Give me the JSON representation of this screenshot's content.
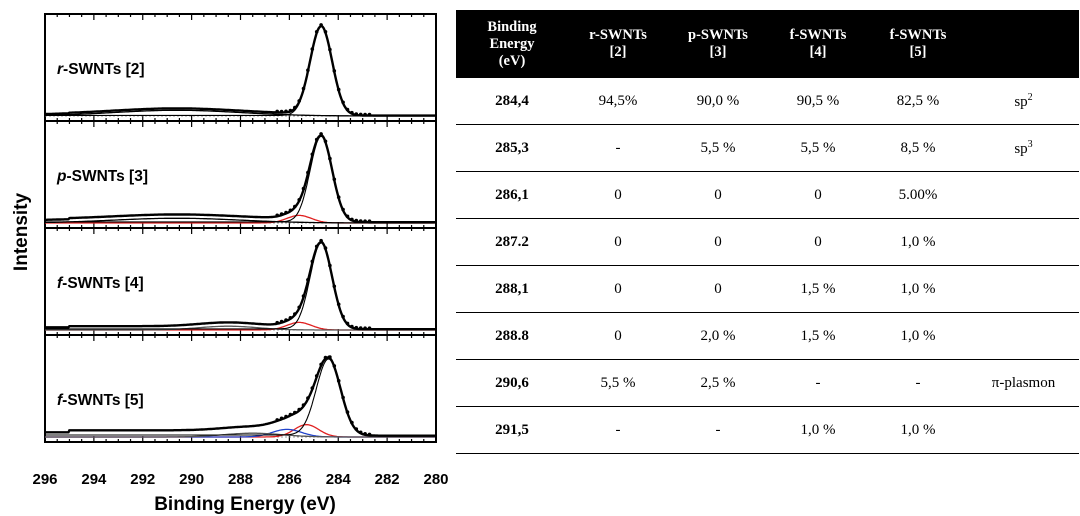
{
  "chart_data": {
    "type": "line",
    "xlabel": "Binding Energy (eV)",
    "ylabel": "Intensity",
    "xlim": [
      296,
      280
    ],
    "x_ticks": [
      296,
      294,
      292,
      290,
      288,
      286,
      284,
      282,
      280
    ],
    "x_reversed": true,
    "grid": false,
    "panels": [
      {
        "label_italic": "r",
        "label_rest": "-SWNTs [2]",
        "components": [
          {
            "role": "main-peak",
            "center": 284.7,
            "amplitude": 0.94,
            "width": 0.45,
            "color": "#000000"
          },
          {
            "role": "pi-plasmon",
            "center": 290.6,
            "amplitude": 0.06,
            "width": 2.6,
            "color": "#000000"
          }
        ],
        "background": 0.02
      },
      {
        "label_italic": "p",
        "label_rest": "-SWNTs [3]",
        "components": [
          {
            "role": "main-peak",
            "center": 284.7,
            "amplitude": 0.9,
            "width": 0.45,
            "color": "#000000"
          },
          {
            "role": "sp3",
            "center": 285.6,
            "amplitude": 0.08,
            "width": 0.5,
            "color": "#e02020"
          },
          {
            "role": "pi-plasmon",
            "center": 290.6,
            "amplitude": 0.05,
            "width": 2.6,
            "color": "#000000"
          }
        ],
        "background": 0.04
      },
      {
        "label_italic": "f",
        "label_rest": "-SWNTs [4]",
        "components": [
          {
            "role": "main-peak",
            "center": 284.7,
            "amplitude": 0.905,
            "width": 0.45,
            "color": "#000000"
          },
          {
            "role": "sp3",
            "center": 285.6,
            "amplitude": 0.08,
            "width": 0.5,
            "color": "#e02020"
          },
          {
            "role": "c-o",
            "center": 288.5,
            "amplitude": 0.04,
            "width": 1.2,
            "color": "#555555"
          }
        ],
        "background": 0.04
      },
      {
        "label_italic": "f",
        "label_rest": "-SWNTs [5]",
        "components": [
          {
            "role": "main-peak",
            "center": 284.4,
            "amplitude": 0.8,
            "width": 0.5,
            "color": "#000000"
          },
          {
            "role": "sp3",
            "center": 285.3,
            "amplitude": 0.13,
            "width": 0.5,
            "color": "#e02020"
          },
          {
            "role": "c-oh",
            "center": 286.1,
            "amplitude": 0.08,
            "width": 0.6,
            "color": "#2244cc"
          },
          {
            "role": "c-o",
            "center": 287.5,
            "amplitude": 0.04,
            "width": 1.2,
            "color": "#555555"
          }
        ],
        "background": 0.07
      }
    ]
  },
  "table": {
    "headers": [
      "Binding Energy (eV)",
      "r-SWNTs [2]",
      "p-SWNTs [3]",
      "f-SWNTs [4]",
      "f-SWNTs [5]",
      ""
    ],
    "header_lines": [
      [
        "Binding",
        "Energy",
        "(eV)"
      ],
      [
        "r-SWNTs",
        "[2]"
      ],
      [
        "p-SWNTs",
        "[3]"
      ],
      [
        "f-SWNTs",
        "[4]"
      ],
      [
        "f-SWNTs",
        "[5]"
      ],
      []
    ],
    "rows": [
      {
        "be": "284,4",
        "r2": "94,5%",
        "p3": "90,0 %",
        "f4": "90,5 %",
        "f5": "82,5 %",
        "assign_base": "sp",
        "assign_sup": "2"
      },
      {
        "be": "285,3",
        "r2": "-",
        "p3": "5,5 %",
        "f4": "5,5 %",
        "f5": "8,5 %",
        "assign_base": "sp",
        "assign_sup": "3"
      },
      {
        "be": "286,1",
        "r2": "0",
        "p3": "0",
        "f4": "0",
        "f5": "5.00%",
        "assign_base": "",
        "assign_sup": ""
      },
      {
        "be": "287.2",
        "r2": "0",
        "p3": "0",
        "f4": "0",
        "f5": "1,0 %",
        "assign_base": "",
        "assign_sup": ""
      },
      {
        "be": "288,1",
        "r2": "0",
        "p3": "0",
        "f4": "1,5 %",
        "f5": "1,0 %",
        "assign_base": "",
        "assign_sup": ""
      },
      {
        "be": "288.8",
        "r2": "0",
        "p3": "2,0 %",
        "f4": "1,5 %",
        "f5": "1,0 %",
        "assign_base": "",
        "assign_sup": ""
      },
      {
        "be": "290,6",
        "r2": "5,5 %",
        "p3": "2,5 %",
        "f4": "-",
        "f5": "-",
        "assign_base": "π-plasmon",
        "assign_sup": ""
      },
      {
        "be": "291,5",
        "r2": "-",
        "p3": "-",
        "f4": "1,0 %",
        "f5": "1,0 %",
        "assign_base": "",
        "assign_sup": ""
      }
    ]
  }
}
